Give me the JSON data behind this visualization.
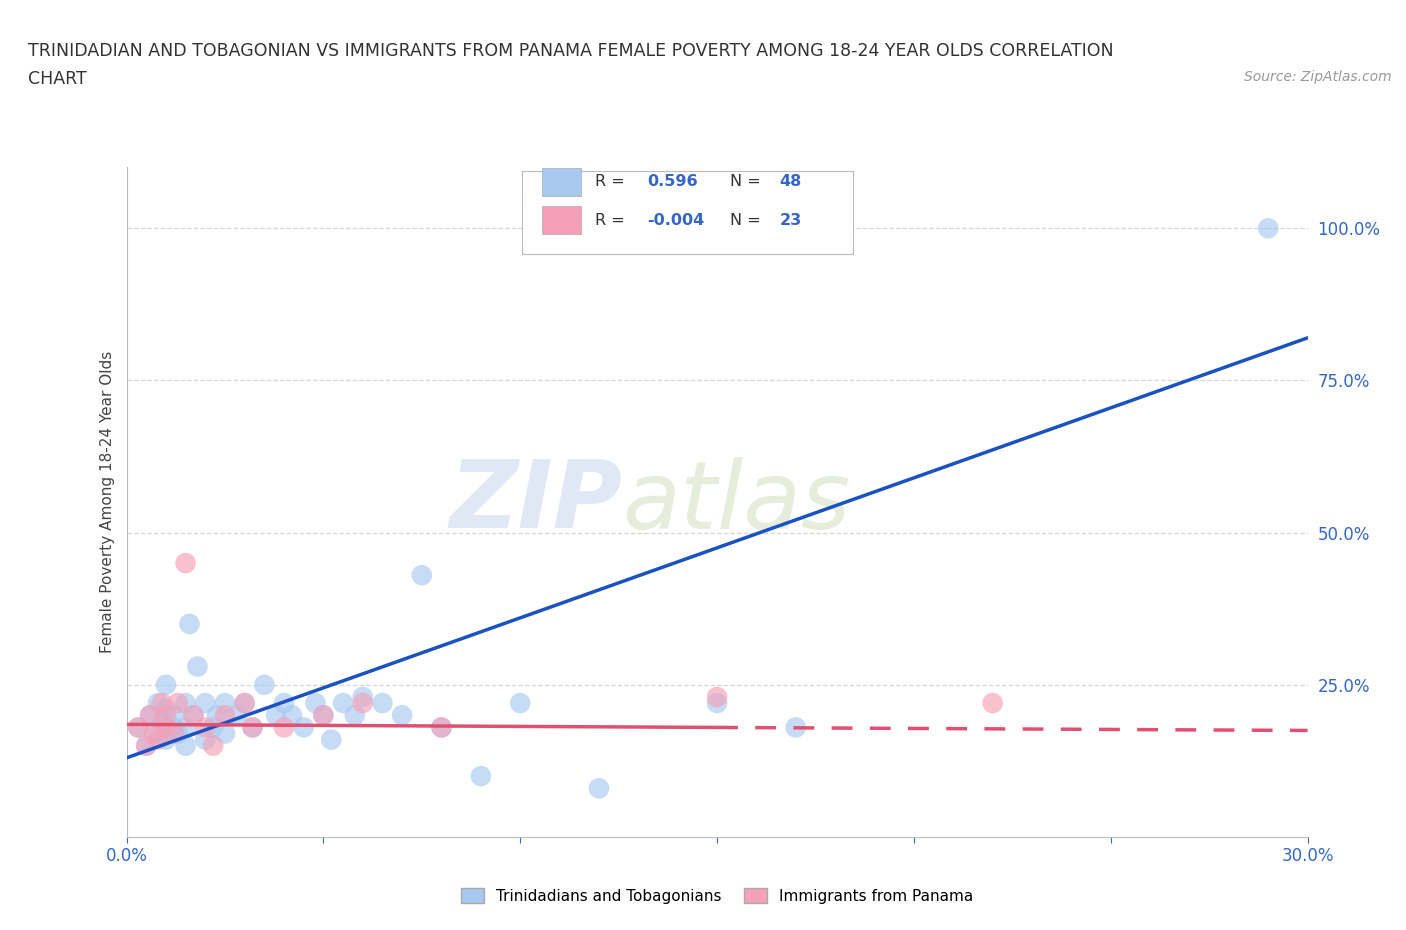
{
  "title_line1": "TRINIDADIAN AND TOBAGONIAN VS IMMIGRANTS FROM PANAMA FEMALE POVERTY AMONG 18-24 YEAR OLDS CORRELATION",
  "title_line2": "CHART",
  "source": "Source: ZipAtlas.com",
  "ylabel": "Female Poverty Among 18-24 Year Olds",
  "xlim": [
    0.0,
    0.3
  ],
  "ylim": [
    0.0,
    1.1
  ],
  "xticks": [
    0.0,
    0.05,
    0.1,
    0.15,
    0.2,
    0.25,
    0.3
  ],
  "xticklabels": [
    "0.0%",
    "",
    "",
    "",
    "",
    "",
    "30.0%"
  ],
  "yticks_right": [
    0.25,
    0.5,
    0.75,
    1.0
  ],
  "ytick_right_labels": [
    "25.0%",
    "50.0%",
    "75.0%",
    "100.0%"
  ],
  "blue_R": 0.596,
  "blue_N": 48,
  "pink_R": -0.004,
  "pink_N": 23,
  "legend1_label": "Trinidadians and Tobagonians",
  "legend2_label": "Immigrants from Panama",
  "blue_color": "#a8c8f0",
  "pink_color": "#f4a0b8",
  "blue_line_color": "#1a52c4",
  "pink_line_color": "#e05070",
  "watermark_zip": "ZIP",
  "watermark_atlas": "atlas",
  "blue_line_x0": 0.0,
  "blue_line_y0": 0.13,
  "blue_line_x1": 0.3,
  "blue_line_y1": 0.82,
  "pink_line_x0": 0.0,
  "pink_line_y0": 0.185,
  "pink_line_x1": 0.3,
  "pink_line_y1": 0.175,
  "blue_scatter_x": [
    0.003,
    0.005,
    0.006,
    0.008,
    0.008,
    0.009,
    0.01,
    0.01,
    0.01,
    0.012,
    0.012,
    0.013,
    0.015,
    0.015,
    0.015,
    0.016,
    0.017,
    0.018,
    0.02,
    0.02,
    0.022,
    0.023,
    0.025,
    0.025,
    0.028,
    0.03,
    0.032,
    0.035,
    0.038,
    0.04,
    0.042,
    0.045,
    0.048,
    0.05,
    0.052,
    0.055,
    0.058,
    0.06,
    0.065,
    0.07,
    0.075,
    0.08,
    0.09,
    0.1,
    0.12,
    0.15,
    0.17,
    0.29
  ],
  "blue_scatter_y": [
    0.18,
    0.15,
    0.2,
    0.17,
    0.22,
    0.19,
    0.16,
    0.21,
    0.25,
    0.18,
    0.2,
    0.17,
    0.22,
    0.18,
    0.15,
    0.35,
    0.2,
    0.28,
    0.16,
    0.22,
    0.18,
    0.2,
    0.22,
    0.17,
    0.2,
    0.22,
    0.18,
    0.25,
    0.2,
    0.22,
    0.2,
    0.18,
    0.22,
    0.2,
    0.16,
    0.22,
    0.2,
    0.23,
    0.22,
    0.2,
    0.43,
    0.18,
    0.1,
    0.22,
    0.08,
    0.22,
    0.18,
    1.0
  ],
  "pink_scatter_x": [
    0.003,
    0.005,
    0.006,
    0.007,
    0.008,
    0.009,
    0.01,
    0.01,
    0.012,
    0.013,
    0.015,
    0.017,
    0.02,
    0.022,
    0.025,
    0.03,
    0.032,
    0.04,
    0.05,
    0.06,
    0.08,
    0.15,
    0.22
  ],
  "pink_scatter_y": [
    0.18,
    0.15,
    0.2,
    0.17,
    0.16,
    0.22,
    0.18,
    0.2,
    0.17,
    0.22,
    0.45,
    0.2,
    0.18,
    0.15,
    0.2,
    0.22,
    0.18,
    0.18,
    0.2,
    0.22,
    0.18,
    0.23,
    0.22
  ],
  "background_color": "#ffffff",
  "grid_color": "#cccccc"
}
